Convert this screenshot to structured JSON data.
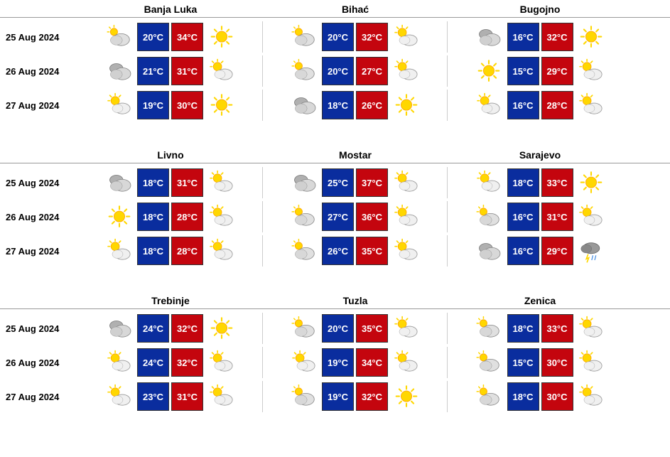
{
  "colors": {
    "low_bg": "#0a2d9e",
    "high_bg": "#c4050e",
    "text": "#000000",
    "border": "#999999"
  },
  "sections": [
    {
      "cities": [
        "Banja Luka",
        "Bihać",
        "Bugojno"
      ],
      "rows": [
        {
          "date": "25 Aug 2024",
          "data": [
            {
              "icon1": "partly-cloudy",
              "low": "20°C",
              "high": "34°C",
              "icon2": "sunny"
            },
            {
              "icon1": "partly-cloudy",
              "low": "20°C",
              "high": "32°C",
              "icon2": "partly-sunny"
            },
            {
              "icon1": "mostly-cloudy",
              "low": "16°C",
              "high": "32°C",
              "icon2": "sunny"
            }
          ]
        },
        {
          "date": "26 Aug 2024",
          "data": [
            {
              "icon1": "mostly-cloudy",
              "low": "21°C",
              "high": "31°C",
              "icon2": "partly-sunny"
            },
            {
              "icon1": "partly-cloudy",
              "low": "20°C",
              "high": "27°C",
              "icon2": "partly-sunny"
            },
            {
              "icon1": "sunny",
              "low": "15°C",
              "high": "29°C",
              "icon2": "partly-sunny"
            }
          ]
        },
        {
          "date": "27 Aug 2024",
          "data": [
            {
              "icon1": "partly-sunny",
              "low": "19°C",
              "high": "30°C",
              "icon2": "sunny"
            },
            {
              "icon1": "mostly-cloudy",
              "low": "18°C",
              "high": "26°C",
              "icon2": "sunny"
            },
            {
              "icon1": "partly-sunny",
              "low": "16°C",
              "high": "28°C",
              "icon2": "partly-sunny"
            }
          ]
        }
      ]
    },
    {
      "cities": [
        "Livno",
        "Mostar",
        "Sarajevo"
      ],
      "rows": [
        {
          "date": "25 Aug 2024",
          "data": [
            {
              "icon1": "mostly-cloudy",
              "low": "18°C",
              "high": "31°C",
              "icon2": "partly-sunny"
            },
            {
              "icon1": "mostly-cloudy",
              "low": "25°C",
              "high": "37°C",
              "icon2": "partly-sunny"
            },
            {
              "icon1": "partly-sunny",
              "low": "18°C",
              "high": "33°C",
              "icon2": "sunny"
            }
          ]
        },
        {
          "date": "26 Aug 2024",
          "data": [
            {
              "icon1": "sunny",
              "low": "18°C",
              "high": "28°C",
              "icon2": "partly-sunny"
            },
            {
              "icon1": "partly-cloudy",
              "low": "27°C",
              "high": "36°C",
              "icon2": "partly-sunny"
            },
            {
              "icon1": "partly-cloudy",
              "low": "16°C",
              "high": "31°C",
              "icon2": "partly-sunny"
            }
          ]
        },
        {
          "date": "27 Aug 2024",
          "data": [
            {
              "icon1": "partly-sunny",
              "low": "18°C",
              "high": "28°C",
              "icon2": "partly-sunny"
            },
            {
              "icon1": "partly-cloudy",
              "low": "26°C",
              "high": "35°C",
              "icon2": "partly-sunny"
            },
            {
              "icon1": "mostly-cloudy",
              "low": "16°C",
              "high": "29°C",
              "icon2": "storm"
            }
          ]
        }
      ]
    },
    {
      "cities": [
        "Trebinje",
        "Tuzla",
        "Zenica"
      ],
      "rows": [
        {
          "date": "25 Aug 2024",
          "data": [
            {
              "icon1": "mostly-cloudy",
              "low": "24°C",
              "high": "32°C",
              "icon2": "sunny"
            },
            {
              "icon1": "partly-cloudy",
              "low": "20°C",
              "high": "35°C",
              "icon2": "partly-sunny"
            },
            {
              "icon1": "partly-cloudy",
              "low": "18°C",
              "high": "33°C",
              "icon2": "partly-sunny"
            }
          ]
        },
        {
          "date": "26 Aug 2024",
          "data": [
            {
              "icon1": "partly-sunny",
              "low": "24°C",
              "high": "32°C",
              "icon2": "partly-sunny"
            },
            {
              "icon1": "partly-sunny",
              "low": "19°C",
              "high": "34°C",
              "icon2": "partly-sunny"
            },
            {
              "icon1": "partly-cloudy",
              "low": "15°C",
              "high": "30°C",
              "icon2": "partly-sunny"
            }
          ]
        },
        {
          "date": "27 Aug 2024",
          "data": [
            {
              "icon1": "partly-sunny",
              "low": "23°C",
              "high": "31°C",
              "icon2": "partly-sunny"
            },
            {
              "icon1": "partly-cloudy",
              "low": "19°C",
              "high": "32°C",
              "icon2": "sunny"
            },
            {
              "icon1": "partly-cloudy",
              "low": "18°C",
              "high": "30°C",
              "icon2": "partly-sunny"
            }
          ]
        }
      ]
    }
  ]
}
